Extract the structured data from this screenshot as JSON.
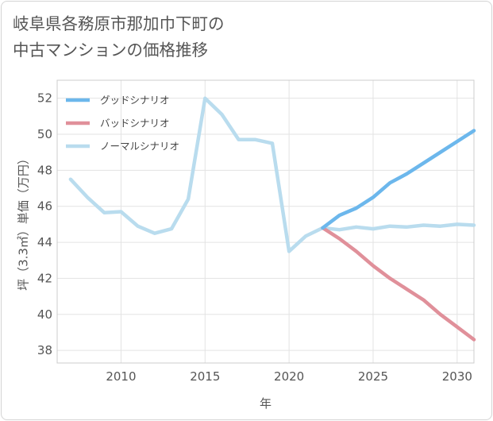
{
  "title_lines": [
    "岐阜県各務原市那加巾下町の",
    "中古マンションの価格推移"
  ],
  "chart_data": {
    "type": "line",
    "title": "岐阜県各務原市那加巾下町の中古マンションの価格推移",
    "xlabel": "年",
    "ylabel": "坪（3.3㎡）単価（万円）",
    "xlim": [
      2006.2,
      2031
    ],
    "ylim": [
      37.3,
      53.0
    ],
    "x_ticks": [
      2010,
      2015,
      2020,
      2025,
      2030
    ],
    "y_ticks": [
      38,
      40,
      42,
      44,
      46,
      48,
      50,
      52
    ],
    "grid": true,
    "legend_position": "top-left",
    "series": [
      {
        "name": "グッドシナリオ",
        "color": "#6cb7ec",
        "x": [
          2022,
          2023,
          2024,
          2025,
          2026,
          2027,
          2028,
          2029,
          2030,
          2031
        ],
        "values": [
          44.8,
          45.5,
          45.9,
          46.5,
          47.3,
          47.8,
          48.4,
          49.0,
          49.6,
          50.2
        ]
      },
      {
        "name": "バッドシナリオ",
        "color": "#e0909a",
        "x": [
          2022,
          2023,
          2024,
          2025,
          2026,
          2027,
          2028,
          2029,
          2030,
          2031
        ],
        "values": [
          44.8,
          44.2,
          43.5,
          42.7,
          42.0,
          41.4,
          40.8,
          40.0,
          39.3,
          38.6
        ]
      },
      {
        "name": "ノーマルシナリオ",
        "color": "#b9dcee",
        "x": [
          2007,
          2008,
          2009,
          2010,
          2011,
          2012,
          2013,
          2014,
          2015,
          2016,
          2017,
          2018,
          2019,
          2020,
          2021,
          2022,
          2023,
          2024,
          2025,
          2026,
          2027,
          2028,
          2029,
          2030,
          2031
        ],
        "values": [
          47.5,
          46.5,
          45.65,
          45.7,
          44.9,
          44.5,
          44.75,
          46.4,
          52.0,
          51.1,
          49.7,
          49.7,
          49.5,
          43.5,
          44.35,
          44.8,
          44.7,
          44.85,
          44.75,
          44.9,
          44.85,
          44.95,
          44.9,
          45.0,
          44.95
        ]
      }
    ]
  }
}
